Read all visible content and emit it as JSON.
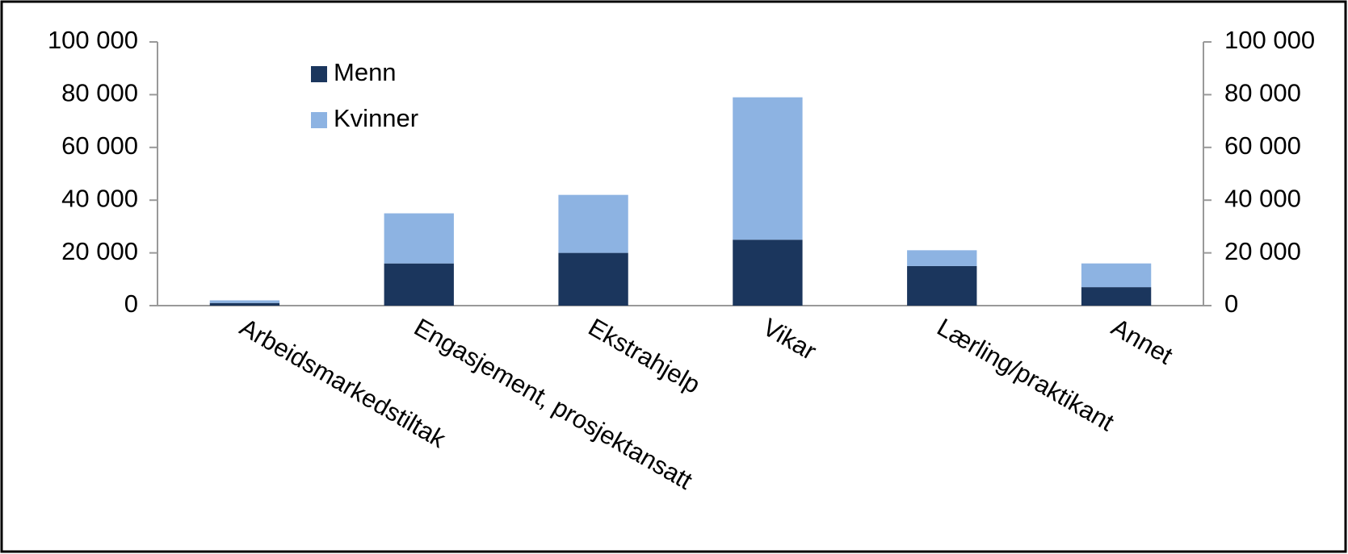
{
  "chart_data": {
    "type": "stacked_bar",
    "categories": [
      "Arbeidsmarkedstiltak",
      "Engasjement, prosjektansatt",
      "Ekstrahjelp",
      "Vikar",
      "Lærling/praktikant",
      "Annet"
    ],
    "series": [
      {
        "name": "Menn",
        "color": "#1b365d",
        "values": [
          1000,
          16000,
          20000,
          25000,
          15000,
          7000
        ]
      },
      {
        "name": "Kvinner",
        "color": "#8db3e2",
        "values": [
          1000,
          19000,
          22000,
          54000,
          6000,
          9000
        ]
      }
    ],
    "ylim": [
      0,
      100000
    ],
    "yticks": [
      0,
      {
        "value": 20000,
        "label": "20 000"
      },
      {
        "value": 40000,
        "label": "40 000"
      },
      {
        "value": 60000,
        "label": "60 000"
      },
      {
        "value": 80000,
        "label": "80 000"
      },
      {
        "value": 100000,
        "label": "100 000"
      }
    ],
    "y2lim": [
      0,
      100000
    ],
    "y2ticks": [
      0,
      {
        "value": 20000,
        "label": "20 000"
      },
      {
        "value": 40000,
        "label": "40 000"
      },
      {
        "value": 60000,
        "label": "60 000"
      },
      {
        "value": 80000,
        "label": "80 000"
      },
      {
        "value": 100000,
        "label": "100 000"
      }
    ],
    "grid": false,
    "legend": "top-left"
  }
}
